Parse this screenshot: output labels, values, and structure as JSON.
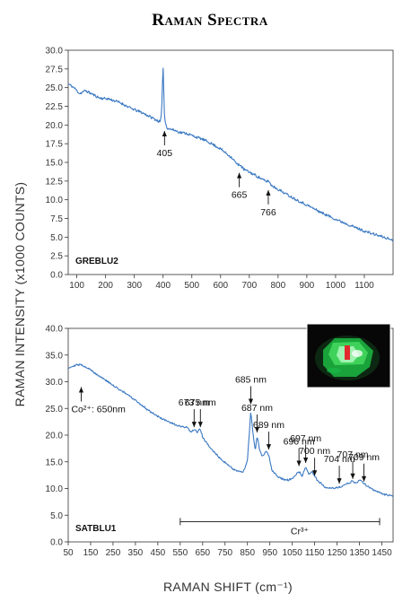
{
  "figure": {
    "title": "Raman Spectra",
    "ylabel": "RAMAN INTENSITY (x1000 COUNTS)",
    "xlabel": "RAMAN SHIFT (cm⁻¹)"
  },
  "colors": {
    "trace": "#3a78c2",
    "axis": "#333333",
    "inset_bg": "#0a0a0a"
  },
  "chart_data": [
    {
      "type": "line",
      "label": "GREBLU2",
      "xlim": [
        70,
        1200
      ],
      "ylim": [
        0,
        30
      ],
      "yticks": [
        "0.0",
        "2.5",
        "5.0",
        "7.5",
        "10.0",
        "12.5",
        "15.0",
        "17.5",
        "20.0",
        "22.5",
        "25.0",
        "27.5",
        "30.0"
      ],
      "xticks": [
        "100",
        "200",
        "300",
        "400",
        "500",
        "600",
        "700",
        "800",
        "900",
        "1000",
        "1100"
      ],
      "series": [
        {
          "x": [
            70,
            90,
            110,
            130,
            150,
            180,
            210,
            250,
            290,
            330,
            360,
            380,
            390,
            395,
            400,
            405,
            410,
            415,
            420,
            440,
            460,
            480,
            500,
            530,
            560,
            600,
            640,
            660,
            665,
            680,
            720,
            760,
            766,
            775,
            800,
            850,
            900,
            950,
            1000,
            1050,
            1100,
            1150,
            1200
          ],
          "y": [
            25.5,
            25.0,
            24.2,
            24.6,
            24.2,
            23.6,
            23.5,
            23.0,
            22.2,
            21.6,
            21.0,
            20.6,
            20.4,
            21.5,
            28.2,
            21.0,
            20.0,
            19.6,
            19.5,
            19.3,
            19.0,
            18.9,
            18.6,
            18.2,
            17.7,
            16.8,
            15.6,
            14.6,
            14.8,
            14.1,
            13.3,
            12.4,
            12.6,
            12.0,
            11.4,
            10.3,
            9.3,
            8.3,
            7.4,
            6.6,
            5.8,
            5.2,
            4.6
          ]
        }
      ],
      "annotations": [
        {
          "text": "405",
          "x": 405,
          "y": 19.2
        },
        {
          "text": "665",
          "x": 665,
          "y": 13.6
        },
        {
          "text": "766",
          "x": 766,
          "y": 11.3
        }
      ]
    },
    {
      "type": "line",
      "label": "SATBLU1",
      "xlim": [
        50,
        1500
      ],
      "ylim": [
        0,
        40
      ],
      "yticks": [
        "0.0",
        "5.0",
        "10.0",
        "15.0",
        "20.0",
        "25.0",
        "30.0",
        "35.0",
        "40.0"
      ],
      "xticks": [
        "50",
        "150",
        "250",
        "350",
        "450",
        "550",
        "650",
        "750",
        "850",
        "950",
        "1050",
        "1150",
        "1250",
        "1350",
        "1450"
      ],
      "series": [
        {
          "x": [
            50,
            80,
            110,
            140,
            170,
            200,
            250,
            300,
            350,
            400,
            450,
            500,
            550,
            580,
            600,
            612,
            625,
            640,
            650,
            680,
            720,
            760,
            800,
            830,
            850,
            865,
            873,
            885,
            893,
            905,
            915,
            935,
            945,
            960,
            990,
            1020,
            1050,
            1080,
            1095,
            1110,
            1125,
            1140,
            1160,
            1200,
            1240,
            1270,
            1300,
            1320,
            1335,
            1350,
            1380,
            1420,
            1460,
            1500
          ],
          "y": [
            32.6,
            33.1,
            33.2,
            32.5,
            31.6,
            30.8,
            29.3,
            28.0,
            26.5,
            24.9,
            23.5,
            22.4,
            21.6,
            21.4,
            20.6,
            21.1,
            20.5,
            21.2,
            19.6,
            17.8,
            16.0,
            14.5,
            13.3,
            13.0,
            15.2,
            24.5,
            21.0,
            17.0,
            19.8,
            17.2,
            16.0,
            17.0,
            16.3,
            13.4,
            12.1,
            11.5,
            11.8,
            13.2,
            12.3,
            14.0,
            12.6,
            13.1,
            11.6,
            10.2,
            10.1,
            10.3,
            11.0,
            11.4,
            11.0,
            11.6,
            10.6,
            9.6,
            8.9,
            8.6
          ]
        }
      ],
      "annotations": [
        {
          "text": "Co²⁺: 650nm",
          "x": 108,
          "y": 29.0,
          "label_pos": "below"
        },
        {
          "text": "673 nm",
          "x": 612,
          "y": 21.5,
          "label_pos": "above"
        },
        {
          "text": "675 nm",
          "x": 640,
          "y": 21.5,
          "label_pos": "above"
        },
        {
          "text": "685 nm",
          "x": 865,
          "y": 25.8,
          "label_pos": "above"
        },
        {
          "text": "687 nm",
          "x": 893,
          "y": 20.5,
          "label_pos": "above"
        },
        {
          "text": "689 nm",
          "x": 945,
          "y": 17.3,
          "label_pos": "above"
        },
        {
          "text": "696 nm",
          "x": 1080,
          "y": 14.2,
          "label_pos": "above"
        },
        {
          "text": "697 nm",
          "x": 1110,
          "y": 14.8,
          "label_pos": "above"
        },
        {
          "text": "700 nm",
          "x": 1150,
          "y": 12.4,
          "label_pos": "above"
        },
        {
          "text": "704 nm",
          "x": 1260,
          "y": 10.9,
          "label_pos": "above"
        },
        {
          "text": "707 nm",
          "x": 1320,
          "y": 11.8,
          "label_pos": "above"
        },
        {
          "text": "709 nm",
          "x": 1370,
          "y": 11.3,
          "label_pos": "above"
        }
      ],
      "range_label": {
        "text": "Cr³⁺",
        "x_start": 550,
        "x_end": 1440,
        "y": 3.8
      }
    }
  ]
}
